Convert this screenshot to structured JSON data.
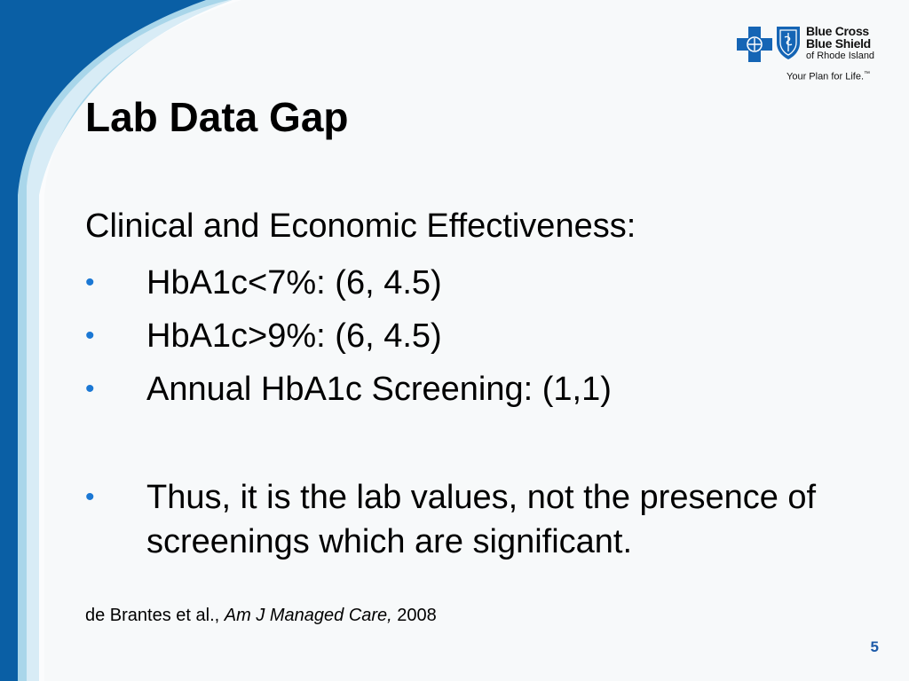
{
  "slide": {
    "title": "Lab Data Gap",
    "subheading": "Clinical and Economic Effectiveness:",
    "bullets": [
      {
        "marker": "•",
        "text": "HbA1c<7%: (6, 4.5)"
      },
      {
        "marker": "•",
        "text": "HbA1c>9%: (6, 4.5)"
      },
      {
        "marker": "•",
        "text": "Annual HbA1c Screening: (1,1)"
      },
      {
        "marker": "•",
        "text": "Thus, it is the lab values, not the presence of screenings which are significant."
      }
    ],
    "citation": {
      "authors": "de Brantes et al., ",
      "journal": "Am J Managed Care,",
      "year": " 2008"
    },
    "page_number": "5"
  },
  "logo": {
    "line1": "Blue Cross",
    "line2": "Blue Shield",
    "line3": "of Rhode Island",
    "tagline": "Your Plan for Life.",
    "tagline_mark": "™"
  },
  "colors": {
    "accent_dark_blue": "#0a5fa5",
    "accent_light_blue": "#a9d6ea",
    "bullet_blue": "#1b78d4",
    "page_number_blue": "#1c5aa8",
    "logo_blue": "#1565b5"
  }
}
